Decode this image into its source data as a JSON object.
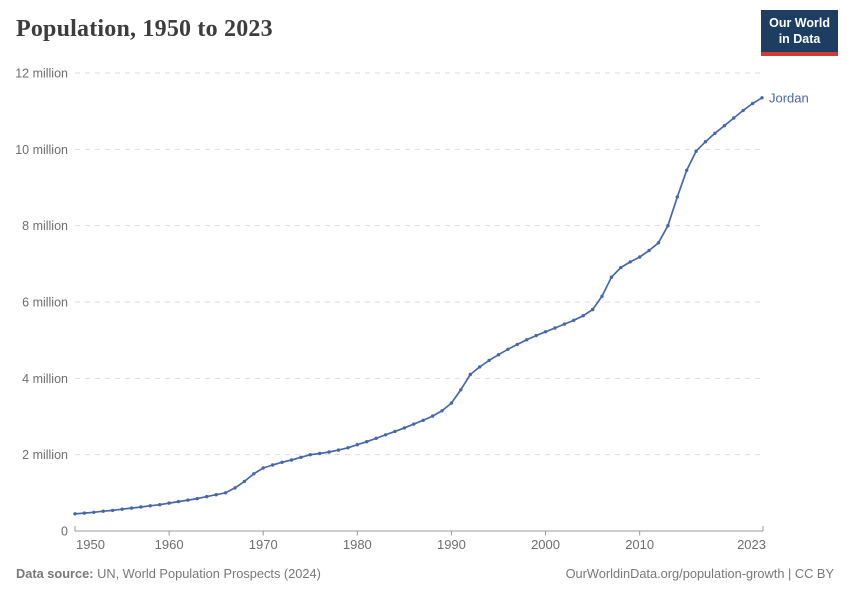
{
  "header": {
    "title": "Population, 1950 to 2023"
  },
  "logo": {
    "line1": "Our World",
    "line2": "in Data",
    "bg_color": "#1d3d63",
    "accent_color": "#d13b32"
  },
  "chart_data": {
    "type": "line",
    "title": "Population, 1950 to 2023",
    "unit": "million",
    "xlabel": "",
    "ylabel": "",
    "xlim": [
      1950,
      2023
    ],
    "ylim": [
      0,
      12
    ],
    "grid": "horizontal-dashed",
    "legend_position": "end-of-line-label",
    "x_ticks": [
      1950,
      1960,
      1970,
      1980,
      1990,
      2000,
      2010,
      2023
    ],
    "y_ticks": [
      {
        "v": 0,
        "label": "0"
      },
      {
        "v": 2,
        "label": "2 million"
      },
      {
        "v": 4,
        "label": "4 million"
      },
      {
        "v": 6,
        "label": "6 million"
      },
      {
        "v": 8,
        "label": "8 million"
      },
      {
        "v": 10,
        "label": "10 million"
      },
      {
        "v": 12,
        "label": "12 million"
      }
    ],
    "series": [
      {
        "name": "Jordan",
        "color": "#4768a8",
        "x": [
          1950,
          1951,
          1952,
          1953,
          1954,
          1955,
          1956,
          1957,
          1958,
          1959,
          1960,
          1961,
          1962,
          1963,
          1964,
          1965,
          1966,
          1967,
          1968,
          1969,
          1970,
          1971,
          1972,
          1973,
          1974,
          1975,
          1976,
          1977,
          1978,
          1979,
          1980,
          1981,
          1982,
          1983,
          1984,
          1985,
          1986,
          1987,
          1988,
          1989,
          1990,
          1991,
          1992,
          1993,
          1994,
          1995,
          1996,
          1997,
          1998,
          1999,
          2000,
          2001,
          2002,
          2003,
          2004,
          2005,
          2006,
          2007,
          2008,
          2009,
          2010,
          2011,
          2012,
          2013,
          2014,
          2015,
          2016,
          2017,
          2018,
          2019,
          2020,
          2021,
          2022,
          2023
        ],
        "values": [
          0.45,
          0.47,
          0.49,
          0.52,
          0.54,
          0.57,
          0.6,
          0.63,
          0.66,
          0.69,
          0.73,
          0.77,
          0.81,
          0.85,
          0.9,
          0.95,
          1.0,
          1.13,
          1.3,
          1.5,
          1.65,
          1.73,
          1.8,
          1.86,
          1.93,
          2.0,
          2.03,
          2.07,
          2.12,
          2.18,
          2.26,
          2.34,
          2.43,
          2.52,
          2.61,
          2.7,
          2.8,
          2.9,
          3.01,
          3.15,
          3.35,
          3.7,
          4.1,
          4.3,
          4.47,
          4.62,
          4.76,
          4.89,
          5.01,
          5.12,
          5.22,
          5.32,
          5.42,
          5.52,
          5.64,
          5.8,
          6.15,
          6.65,
          6.9,
          7.05,
          7.18,
          7.35,
          7.55,
          8.0,
          8.75,
          9.45,
          9.95,
          10.2,
          10.42,
          10.62,
          10.82,
          11.02,
          11.2,
          11.35
        ]
      }
    ],
    "colors": {
      "gridline": "#dddddd",
      "axis": "#999999",
      "tick_label": "#6e6e6e"
    }
  },
  "footer": {
    "source_label": "Data source:",
    "source_text": " UN, World Population Prospects (2024)",
    "link_text": "OurWorldinData.org/population-growth | CC BY"
  }
}
